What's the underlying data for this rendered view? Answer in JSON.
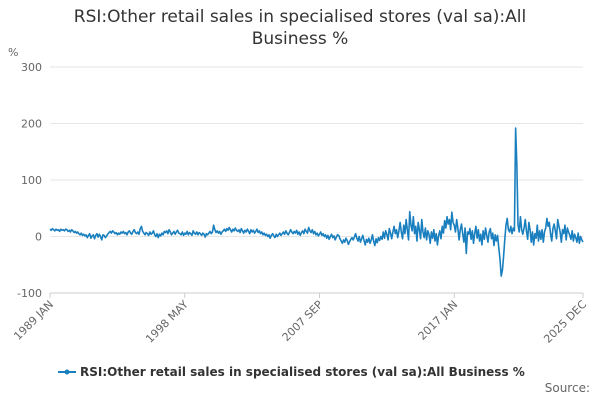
{
  "chart_data": {
    "type": "line",
    "title": "RSI:Other retail sales in specialised stores (val sa):All Business %",
    "y_label": "%",
    "source": "Source:",
    "legend": "bottom",
    "grid": true,
    "ylim": [
      -100,
      300
    ],
    "yticks": [
      -100,
      0,
      100,
      200,
      300
    ],
    "categories": [
      "1989 JAN",
      null,
      null,
      null,
      null,
      null,
      null,
      null,
      null,
      null,
      null,
      null,
      null,
      null,
      null,
      null,
      null,
      null,
      null,
      null,
      null,
      null,
      null,
      null,
      null,
      null,
      null,
      null,
      null,
      null,
      null,
      null,
      null,
      null,
      null,
      null,
      null,
      null,
      null,
      null,
      null,
      null,
      null,
      null,
      null,
      null,
      null,
      null,
      null,
      null,
      null,
      null,
      null,
      null,
      null,
      null,
      null,
      null,
      null,
      null,
      null,
      null,
      null,
      null,
      null,
      null,
      null,
      null,
      null,
      null,
      null,
      null,
      null,
      null,
      null,
      null,
      null,
      null,
      null,
      null,
      null,
      null,
      null,
      null,
      null,
      null,
      null,
      null,
      null,
      null,
      null,
      null,
      null,
      null,
      null,
      null,
      null,
      null,
      null,
      null,
      null,
      null,
      null,
      null,
      null,
      null,
      null,
      null,
      null,
      null,
      null,
      null,
      "1998 MAY",
      null,
      null,
      null,
      null,
      null,
      null,
      null,
      null,
      null,
      null,
      null,
      null,
      null,
      null,
      null,
      null,
      null,
      null,
      null,
      null,
      null,
      null,
      null,
      null,
      null,
      null,
      null,
      null,
      null,
      null,
      null,
      null,
      null,
      null,
      null,
      null,
      null,
      null,
      null,
      null,
      null,
      null,
      null,
      null,
      null,
      null,
      null,
      null,
      null,
      null,
      null,
      null,
      null,
      null,
      null,
      null,
      null,
      null,
      null,
      null,
      null,
      null,
      null,
      null,
      null,
      null,
      null,
      null,
      null,
      null,
      null,
      null,
      null,
      null,
      null,
      null,
      null,
      null,
      null,
      null,
      null,
      null,
      null,
      null,
      null,
      null,
      null,
      null,
      null,
      null,
      null,
      null,
      null,
      null,
      null,
      null,
      null,
      null,
      null,
      null,
      null,
      null,
      null,
      null,
      null,
      null,
      null,
      null,
      null,
      null,
      null,
      "2007 SEP",
      null,
      null,
      null,
      null,
      null,
      null,
      null,
      null,
      null,
      null,
      null,
      null,
      null,
      null,
      null,
      null,
      null,
      null,
      null,
      null,
      null,
      null,
      null,
      null,
      null,
      null,
      null,
      null,
      null,
      null,
      null,
      null,
      null,
      null,
      null,
      null,
      null,
      null,
      null,
      null,
      null,
      null,
      null,
      null,
      null,
      null,
      null,
      null,
      null,
      null,
      null,
      null,
      null,
      null,
      null,
      null,
      null,
      null,
      null,
      null,
      null,
      null,
      null,
      null,
      null,
      null,
      null,
      null,
      null,
      null,
      null,
      null,
      null,
      null,
      null,
      null,
      null,
      null,
      null,
      null,
      null,
      null,
      null,
      null,
      null,
      null,
      null,
      null,
      null,
      null,
      null,
      null,
      null,
      null,
      null,
      null,
      null,
      null,
      null,
      null,
      null,
      null,
      null,
      null,
      null,
      null,
      null,
      null,
      null,
      null,
      null,
      "2017 JAN",
      null,
      null,
      null,
      null,
      null,
      null,
      null,
      null,
      null,
      null,
      null,
      null,
      null,
      null,
      null,
      null,
      null,
      null,
      null,
      null,
      null,
      null,
      null,
      null,
      null,
      null,
      null,
      null,
      null,
      null,
      null,
      null,
      null,
      null,
      null,
      null,
      null,
      null,
      null,
      null,
      null,
      null,
      null,
      null,
      null,
      null,
      null,
      null,
      null,
      null,
      null,
      null,
      null,
      null,
      null,
      null,
      null,
      null,
      null,
      null,
      null,
      null,
      null,
      null,
      null,
      null,
      null,
      null,
      null,
      null,
      null,
      null,
      null,
      null,
      null,
      null,
      null,
      null,
      null,
      null,
      null,
      null,
      null,
      null,
      null,
      null,
      null,
      null,
      null,
      null,
      null,
      null,
      null,
      null,
      null,
      null,
      null,
      null,
      null,
      null,
      null,
      null,
      null,
      null,
      null,
      null,
      "2025 DEC"
    ],
    "series": [
      {
        "name": "RSI:Other retail sales in specialised stores (val sa):All Business %",
        "color": "#1a7fbf",
        "values": [
          13,
          11,
          14,
          12,
          10,
          13,
          11,
          12,
          9,
          13,
          11,
          12,
          10,
          13,
          12,
          9,
          11,
          8,
          12,
          10,
          7,
          9,
          6,
          8,
          5,
          3,
          6,
          2,
          4,
          1,
          3,
          -2,
          2,
          5,
          -3,
          1,
          3,
          -4,
          2,
          5,
          -1,
          4,
          0,
          -6,
          3,
          2,
          -2,
          1,
          4,
          7,
          9,
          6,
          10,
          8,
          5,
          7,
          3,
          6,
          4,
          8,
          6,
          9,
          5,
          7,
          3,
          8,
          10,
          6,
          4,
          9,
          12,
          7,
          5,
          8,
          4,
          14,
          18,
          9,
          6,
          3,
          7,
          5,
          2,
          8,
          4,
          6,
          10,
          3,
          0,
          5,
          -2,
          4,
          1,
          6,
          3,
          9,
          7,
          10,
          5,
          12,
          8,
          3,
          6,
          9,
          4,
          8,
          11,
          6,
          5,
          3,
          8,
          2,
          6,
          4,
          9,
          3,
          7,
          5,
          2,
          10,
          6,
          4,
          8,
          3,
          7,
          5,
          2,
          6,
          4,
          -1,
          5,
          3,
          6,
          9,
          5,
          8,
          20,
          12,
          7,
          10,
          6,
          9,
          4,
          8,
          10,
          13,
          9,
          14,
          11,
          16,
          12,
          8,
          13,
          10,
          15,
          11,
          9,
          12,
          7,
          14,
          10,
          6,
          11,
          8,
          13,
          9,
          5,
          12,
          8,
          11,
          6,
          9,
          13,
          7,
          10,
          5,
          8,
          3,
          6,
          2,
          4,
          0,
          3,
          -3,
          2,
          5,
          1,
          -2,
          4,
          0,
          3,
          6,
          2,
          5,
          8,
          4,
          10,
          6,
          3,
          7,
          12,
          8,
          5,
          9,
          6,
          11,
          4,
          8,
          2,
          7,
          10,
          5,
          13,
          9,
          6,
          16,
          10,
          7,
          12,
          5,
          9,
          3,
          6,
          1,
          4,
          8,
          2,
          5,
          0,
          3,
          -3,
          2,
          -5,
          0,
          4,
          -2,
          1,
          -6,
          -1,
          3,
          2,
          -4,
          -8,
          -12,
          -6,
          -10,
          -3,
          -7,
          -14,
          -9,
          -5,
          -2,
          -6,
          -1,
          5,
          -3,
          -8,
          0,
          -10,
          -4,
          2,
          -7,
          -15,
          -5,
          -10,
          -3,
          -12,
          -6,
          3,
          -8,
          -16,
          -4,
          -11,
          -2,
          -7,
          0,
          -5,
          8,
          -3,
          10,
          4,
          -6,
          14,
          6,
          -4,
          8,
          18,
          5,
          12,
          -2,
          10,
          25,
          8,
          -4,
          20,
          5,
          30,
          12,
          -6,
          44,
          20,
          10,
          35,
          5,
          18,
          -8,
          25,
          12,
          -4,
          30,
          8,
          -2,
          15,
          -6,
          10,
          4,
          -12,
          8,
          -3,
          12,
          -8,
          5,
          -15,
          2,
          10,
          -4,
          18,
          6,
          28,
          15,
          35,
          22,
          30,
          12,
          43,
          25,
          20,
          8,
          30,
          15,
          -6,
          12,
          22,
          5,
          -10,
          15,
          -30,
          8,
          4,
          14,
          -5,
          10,
          -12,
          6,
          18,
          -3,
          12,
          -8,
          4,
          -15,
          10,
          -5,
          15,
          2,
          -10,
          8,
          14,
          -4,
          6,
          -16,
          3,
          -8,
          2,
          -20,
          -40,
          -70,
          -60,
          -35,
          -5,
          20,
          32,
          12,
          8,
          18,
          5,
          15,
          10,
          192,
          128,
          20,
          8,
          35,
          12,
          4,
          15,
          30,
          10,
          -5,
          25,
          12,
          -10,
          8,
          -15,
          5,
          -3,
          20,
          -8,
          10,
          -5,
          12,
          -10,
          8,
          15,
          32,
          18,
          25,
          5,
          -8,
          14,
          22,
          10,
          -4,
          30,
          18,
          8,
          -10,
          12,
          5,
          20,
          -6,
          15,
          8,
          2,
          -5,
          10,
          -8,
          4,
          -2,
          -10,
          6,
          -12,
          0,
          -6,
          -10
        ]
      }
    ]
  }
}
